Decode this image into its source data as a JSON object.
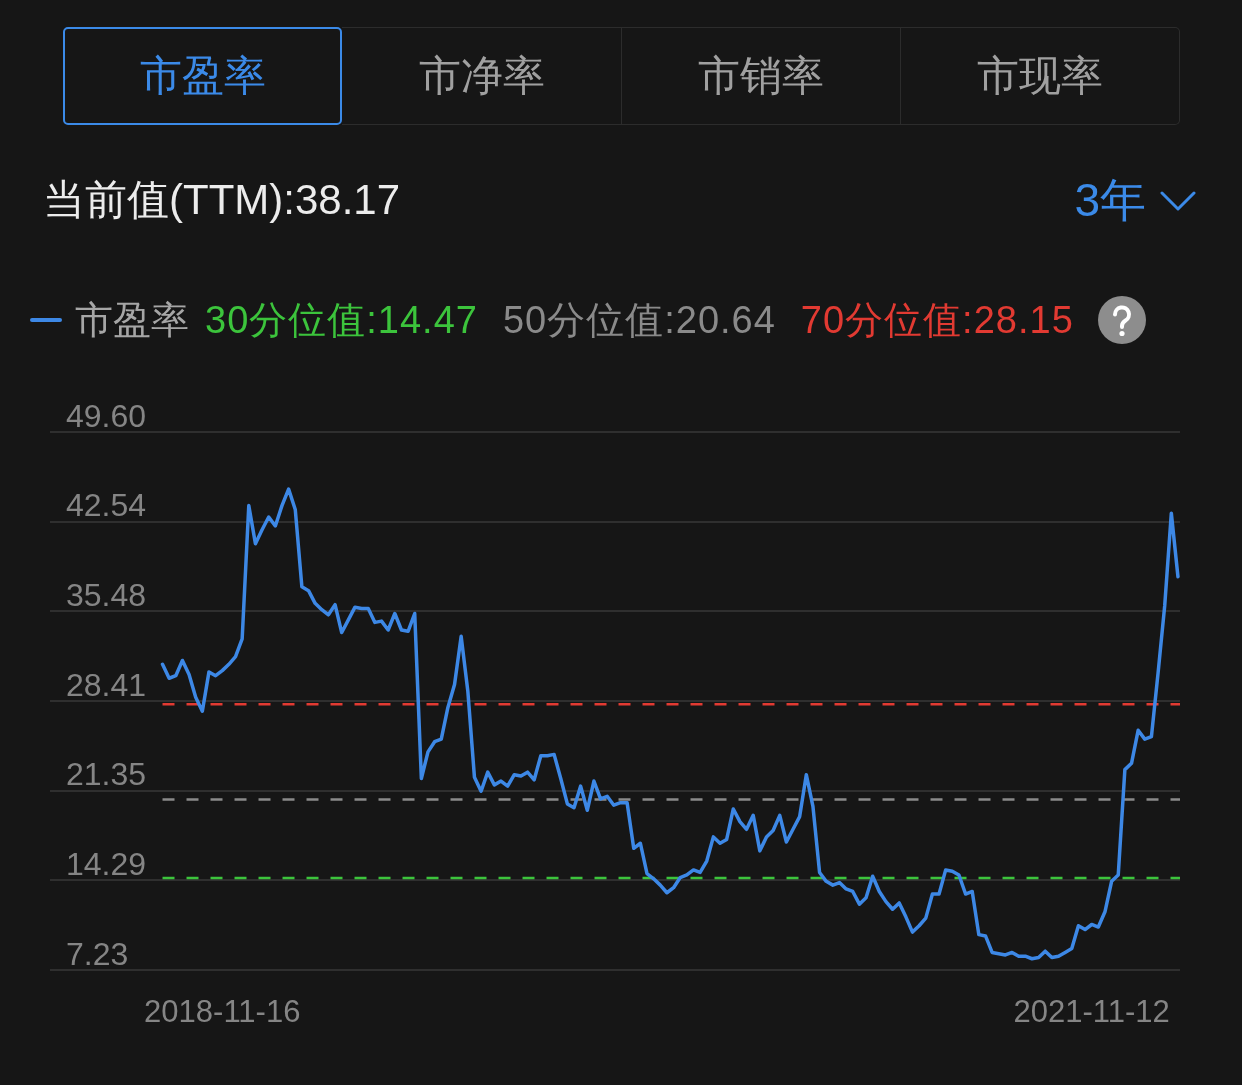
{
  "chart_data": {
    "type": "line",
    "title": "当前值(TTM):38.17",
    "annotations": [
      "市盈率",
      "市净率",
      "市销率",
      "市现率",
      "3年"
    ],
    "categories": [
      null,
      null,
      null,
      null,
      null,
      null,
      null,
      null,
      null,
      "2018-11-16",
      null,
      null,
      null,
      null,
      null,
      null,
      null,
      null,
      null,
      null,
      null,
      null,
      null,
      null,
      null,
      null,
      null,
      null,
      null,
      null,
      null,
      null,
      null,
      null,
      null,
      null,
      null,
      null,
      null,
      null,
      null,
      null,
      null,
      null,
      null,
      null,
      null,
      null,
      null,
      null,
      null,
      null,
      null,
      null,
      null,
      null,
      null,
      null,
      null,
      null,
      null,
      null,
      null,
      null,
      null,
      null,
      null,
      null,
      null,
      null,
      null,
      null,
      null,
      null,
      null,
      null,
      null,
      null,
      null,
      null,
      null,
      null,
      null,
      null,
      null,
      null,
      null,
      null,
      null,
      null,
      null,
      null,
      null,
      null,
      null,
      null,
      null,
      null,
      null,
      null,
      null,
      null,
      null,
      null,
      null,
      null,
      null,
      null,
      null,
      null,
      null,
      null,
      null,
      null,
      null,
      null,
      null,
      null,
      null,
      null,
      null,
      null,
      null,
      null,
      null,
      null,
      null,
      null,
      null,
      null,
      null,
      null,
      null,
      null,
      null,
      null,
      null,
      null,
      null,
      null,
      "2021-11-12",
      null,
      null,
      null,
      null,
      null,
      null,
      null,
      null,
      null,
      null,
      null,
      null,
      null
    ],
    "series": [
      {
        "name": "市盈率",
        "color": "#3d88e6",
        "values": [
          31.3,
          30.2,
          30.4,
          31.6,
          30.5,
          28.7,
          27.6,
          30.7,
          30.4,
          30.8,
          31.3,
          31.9,
          33.3,
          43.8,
          40.8,
          41.9,
          42.9,
          42.2,
          43.8,
          45.1,
          43.5,
          37.4,
          37.1,
          36.1,
          35.6,
          35.2,
          36.0,
          33.8,
          34.8,
          35.8,
          35.7,
          35.7,
          34.6,
          34.7,
          34.0,
          35.3,
          34.0,
          33.9,
          35.3,
          22.3,
          24.4,
          25.2,
          25.4,
          27.9,
          29.7,
          33.5,
          29.2,
          22.4,
          21.3,
          22.8,
          21.8,
          22.1,
          21.7,
          22.6,
          22.5,
          22.8,
          22.2,
          24.1,
          24.1,
          24.2,
          22.3,
          20.3,
          20.0,
          21.7,
          19.8,
          22.1,
          20.7,
          20.9,
          20.2,
          20.4,
          20.4,
          16.8,
          17.2,
          14.8,
          14.4,
          13.9,
          13.3,
          13.7,
          14.5,
          14.7,
          15.1,
          14.9,
          15.8,
          17.7,
          17.2,
          17.5,
          19.9,
          18.9,
          18.3,
          19.4,
          16.6,
          17.7,
          18.2,
          19.4,
          17.3,
          18.3,
          19.3,
          22.6,
          20.1,
          14.9,
          14.2,
          13.9,
          14.1,
          13.6,
          13.4,
          12.4,
          12.9,
          14.6,
          13.4,
          12.6,
          12.0,
          12.5,
          11.4,
          10.2,
          10.7,
          11.3,
          13.2,
          13.2,
          15.1,
          15.0,
          14.7,
          13.2,
          13.4,
          10.0,
          9.9,
          8.6,
          8.5,
          8.4,
          8.6,
          8.3,
          8.3,
          8.1,
          8.2,
          8.7,
          8.2,
          8.3,
          8.6,
          8.9,
          10.7,
          10.4,
          10.8,
          10.6,
          11.8,
          14.2,
          14.7,
          23.0,
          23.5,
          26.1,
          25.4,
          25.6,
          30.6,
          35.9,
          43.2,
          38.2
        ]
      }
    ],
    "ylim": [
      7.23,
      49.6
    ],
    "yticks": [
      7.23,
      14.29,
      21.35,
      28.41,
      35.48,
      42.54,
      {
        "value": 49.6,
        "label": "49.60"
      }
    ],
    "grid": "y",
    "legend": "top left",
    "ref_lines": [
      {
        "axis": "y",
        "value": 14.47,
        "label": "30分位值:14.47",
        "color": "#3cc43c",
        "line_style": "dashed"
      },
      {
        "axis": "y",
        "value": 20.64,
        "label": "50分位值:20.64",
        "color": "#8a8a8a",
        "line_style": "dashed"
      },
      {
        "axis": "y",
        "value": 28.15,
        "label": "70分位值:28.15",
        "color": "#e23a32",
        "line_style": "dashed"
      }
    ]
  }
}
